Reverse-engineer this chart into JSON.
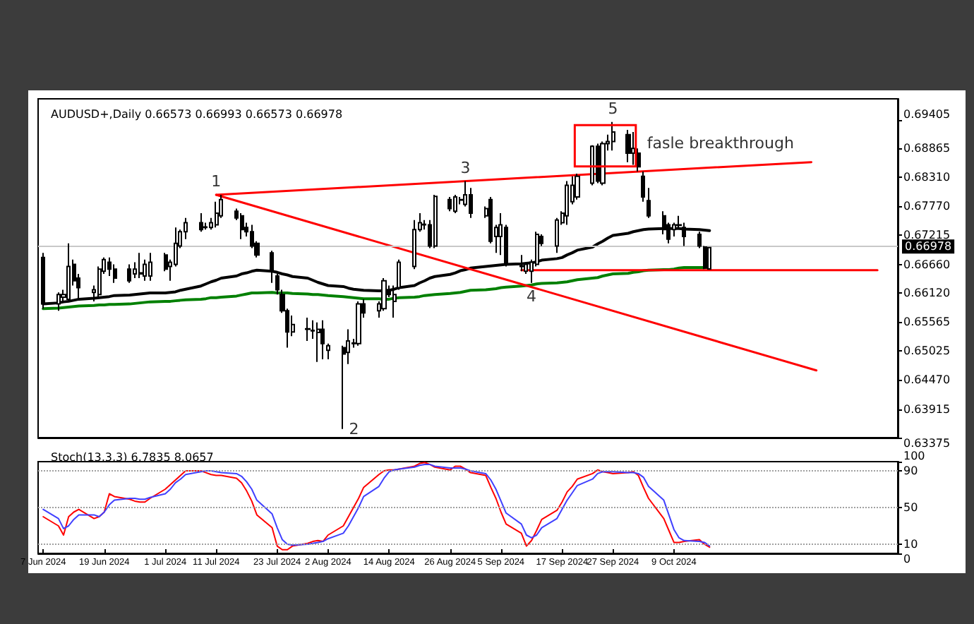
{
  "chart_data": [
    {
      "type": "candlestick",
      "title": "AUDUSD+,Daily 0.66573 0.66993 0.66573 0.66978",
      "x": [
        "2024-06-07",
        "2024-06-10",
        "2024-06-11",
        "2024-06-12",
        "2024-06-13",
        "2024-06-14",
        "2024-06-17",
        "2024-06-18",
        "2024-06-19",
        "2024-06-20",
        "2024-06-21",
        "2024-06-24",
        "2024-06-25",
        "2024-06-26",
        "2024-06-27",
        "2024-06-28",
        "2024-07-01",
        "2024-07-02",
        "2024-07-03",
        "2024-07-04",
        "2024-07-05",
        "2024-07-08",
        "2024-07-09",
        "2024-07-10",
        "2024-07-11",
        "2024-07-12",
        "2024-07-15",
        "2024-07-16",
        "2024-07-17",
        "2024-07-18",
        "2024-07-19",
        "2024-07-22",
        "2024-07-23",
        "2024-07-24",
        "2024-07-25",
        "2024-07-26",
        "2024-07-29",
        "2024-07-30",
        "2024-07-31",
        "2024-08-01",
        "2024-08-02",
        "2024-08-05",
        "2024-08-06",
        "2024-08-07",
        "2024-08-08",
        "2024-08-09",
        "2024-08-12",
        "2024-08-13",
        "2024-08-14",
        "2024-08-15",
        "2024-08-16",
        "2024-08-19",
        "2024-08-20",
        "2024-08-21",
        "2024-08-22",
        "2024-08-23",
        "2024-08-26",
        "2024-08-27",
        "2024-08-28",
        "2024-08-29",
        "2024-08-30",
        "2024-09-02",
        "2024-09-03",
        "2024-09-04",
        "2024-09-05",
        "2024-09-06",
        "2024-09-09",
        "2024-09-10",
        "2024-09-11",
        "2024-09-12",
        "2024-09-13",
        "2024-09-16",
        "2024-09-17",
        "2024-09-18",
        "2024-09-19",
        "2024-09-20",
        "2024-09-23",
        "2024-09-24",
        "2024-09-25",
        "2024-09-26",
        "2024-09-27",
        "2024-09-30",
        "2024-10-01",
        "2024-10-02",
        "2024-10-03",
        "2024-10-04",
        "2024-10-07",
        "2024-10-08",
        "2024-10-09",
        "2024-10-10",
        "2024-10-11",
        "2024-10-14",
        "2024-10-15",
        "2024-10-16"
      ],
      "ohlc": [
        [
          0.6679,
          0.6688,
          0.6582,
          0.6591
        ],
        [
          0.6591,
          0.6613,
          0.6578,
          0.6609
        ],
        [
          0.6604,
          0.6618,
          0.6596,
          0.6609
        ],
        [
          0.66,
          0.6706,
          0.6596,
          0.6662
        ],
        [
          0.6666,
          0.6675,
          0.6626,
          0.6635
        ],
        [
          0.664,
          0.6648,
          0.66,
          0.6622
        ],
        [
          0.6613,
          0.6626,
          0.6596,
          0.6618
        ],
        [
          0.6609,
          0.6662,
          0.6604,
          0.6657
        ],
        [
          0.6653,
          0.6679,
          0.6648,
          0.6675
        ],
        [
          0.667,
          0.6679,
          0.6644,
          0.6657
        ],
        [
          0.6657,
          0.6666,
          0.6631,
          0.664
        ],
        [
          0.6657,
          0.6666,
          0.6631,
          0.6635
        ],
        [
          0.6648,
          0.667,
          0.664,
          0.6657
        ],
        [
          0.6648,
          0.6688,
          0.664,
          0.665
        ],
        [
          0.6644,
          0.6675,
          0.6635,
          0.6666
        ],
        [
          0.6644,
          0.6688,
          0.6635,
          0.667
        ],
        [
          0.6684,
          0.6688,
          0.6653,
          0.6657
        ],
        [
          0.6662,
          0.6675,
          0.6635,
          0.667
        ],
        [
          0.6666,
          0.6736,
          0.6662,
          0.6706
        ],
        [
          0.6701,
          0.6732,
          0.6697,
          0.6728
        ],
        [
          0.6728,
          0.6754,
          0.6714,
          0.6745
        ],
        [
          0.6745,
          0.6763,
          0.6728,
          0.6732
        ],
        [
          0.6736,
          0.6745,
          0.6732,
          0.6737
        ],
        [
          0.6736,
          0.6754,
          0.6732,
          0.6745
        ],
        [
          0.6741,
          0.6785,
          0.6736,
          0.6763
        ],
        [
          0.6758,
          0.6798,
          0.6754,
          0.6789
        ],
        [
          0.6767,
          0.6772,
          0.675,
          0.6754
        ],
        [
          0.6758,
          0.6763,
          0.6714,
          0.6732
        ],
        [
          0.6736,
          0.6745,
          0.6719,
          0.6728
        ],
        [
          0.6728,
          0.6741,
          0.6697,
          0.6701
        ],
        [
          0.6706,
          0.671,
          0.6679,
          0.6684
        ],
        [
          0.6688,
          0.6692,
          0.6631,
          0.6653
        ],
        [
          0.6644,
          0.6648,
          0.6609,
          0.6618
        ],
        [
          0.6609,
          0.6618,
          0.6574,
          0.6578
        ],
        [
          0.6578,
          0.6582,
          0.6508,
          0.6538
        ],
        [
          0.6538,
          0.6569,
          0.653,
          0.6552
        ],
        [
          0.6543,
          0.6565,
          0.6521,
          0.6544
        ],
        [
          0.654,
          0.656,
          0.6525,
          0.6541
        ],
        [
          0.6537,
          0.6556,
          0.6481,
          0.6543
        ],
        [
          0.6543,
          0.656,
          0.6486,
          0.6516
        ],
        [
          0.6503,
          0.6516,
          0.6486,
          0.6512
        ],
        [
          0.6508,
          0.6512,
          0.6354,
          0.6496
        ],
        [
          0.6499,
          0.6543,
          0.6477,
          0.6521
        ],
        [
          0.6516,
          0.6525,
          0.6508,
          0.6517
        ],
        [
          0.6516,
          0.6596,
          0.6512,
          0.6591
        ],
        [
          0.6591,
          0.66,
          0.6565,
          0.6574
        ],
        [
          0.6578,
          0.6596,
          0.6565,
          0.6591
        ],
        [
          0.6582,
          0.664,
          0.6578,
          0.6635
        ],
        [
          0.6618,
          0.6626,
          0.6604,
          0.6609
        ],
        [
          0.6596,
          0.6626,
          0.6565,
          0.6609
        ],
        [
          0.6622,
          0.6675,
          0.6618,
          0.667
        ],
        [
          0.6662,
          0.675,
          0.6657,
          0.6732
        ],
        [
          0.6732,
          0.6763,
          0.6728,
          0.6745
        ],
        [
          0.6741,
          0.675,
          0.6732,
          0.6742
        ],
        [
          0.6741,
          0.675,
          0.6697,
          0.6701
        ],
        [
          0.6701,
          0.6798,
          0.6697,
          0.6795
        ],
        [
          0.6789,
          0.6794,
          0.6767,
          0.6772
        ],
        [
          0.6767,
          0.6798,
          0.6763,
          0.6794
        ],
        [
          0.6789,
          0.6794,
          0.678,
          0.6788
        ],
        [
          0.678,
          0.6824,
          0.6776,
          0.6798
        ],
        [
          0.6798,
          0.6811,
          0.6754,
          0.6763
        ],
        [
          0.6758,
          0.6776,
          0.6754,
          0.6772
        ],
        [
          0.6789,
          0.6794,
          0.6706,
          0.671
        ],
        [
          0.6719,
          0.6741,
          0.6688,
          0.6736
        ],
        [
          0.6719,
          0.6763,
          0.6684,
          0.6741
        ],
        [
          0.6736,
          0.6741,
          0.6662,
          0.6666
        ],
        [
          0.6662,
          0.6684,
          0.6653,
          0.6663
        ],
        [
          0.6653,
          0.667,
          0.6648,
          0.6666
        ],
        [
          0.6653,
          0.6675,
          0.6631,
          0.667
        ],
        [
          0.6666,
          0.6728,
          0.6662,
          0.6723
        ],
        [
          0.6719,
          0.6723,
          0.6701,
          0.6706
        ],
        [
          0.6701,
          0.6754,
          0.6688,
          0.675
        ],
        [
          0.6745,
          0.6767,
          0.6741,
          0.6763
        ],
        [
          0.6758,
          0.6824,
          0.6741,
          0.6816
        ],
        [
          0.6785,
          0.6833,
          0.678,
          0.6816
        ],
        [
          0.6794,
          0.6838,
          0.6789,
          0.6833
        ],
        [
          0.682,
          0.6892,
          0.6816,
          0.689
        ],
        [
          0.689,
          0.6895,
          0.682,
          0.6824
        ],
        [
          0.682,
          0.6899,
          0.6816,
          0.6895
        ],
        [
          0.6895,
          0.6912,
          0.6882,
          0.6899
        ],
        [
          0.6899,
          0.6936,
          0.6882,
          0.6917
        ],
        [
          0.6912,
          0.6921,
          0.686,
          0.6877
        ],
        [
          0.6877,
          0.6917,
          0.6855,
          0.6886
        ],
        [
          0.6877,
          0.6886,
          0.6842,
          0.6851
        ],
        [
          0.6833,
          0.6842,
          0.6785,
          0.6794
        ],
        [
          0.6787,
          0.6811,
          0.6754,
          0.6758
        ],
        [
          0.6758,
          0.6767,
          0.6723,
          0.6732
        ],
        [
          0.6741,
          0.6745,
          0.6706,
          0.6714
        ],
        [
          0.6732,
          0.6745,
          0.6719,
          0.6741
        ],
        [
          0.6741,
          0.6758,
          0.6736,
          0.674
        ],
        [
          0.6736,
          0.6745,
          0.6701,
          0.6719
        ],
        [
          0.6723,
          0.6728,
          0.6697,
          0.6701
        ],
        [
          0.6699,
          0.6701,
          0.6657,
          0.6659
        ],
        [
          0.66573,
          0.66993,
          0.66573,
          0.66978
        ]
      ],
      "series": [
        {
          "type": "line",
          "color": "#000000",
          "values": [
            0.6591,
            0.6593,
            0.6595,
            0.6596,
            0.6598,
            0.66,
            0.6602,
            0.6603,
            0.6604,
            0.6605,
            0.6607,
            0.6608,
            0.6609,
            0.661,
            0.6611,
            0.6612,
            0.6612,
            0.6613,
            0.6614,
            0.6617,
            0.6619,
            0.6625,
            0.6629,
            0.6633,
            0.6636,
            0.664,
            0.6644,
            0.6648,
            0.665,
            0.6653,
            0.6655,
            0.6653,
            0.6651,
            0.6648,
            0.6646,
            0.6643,
            0.664,
            0.6636,
            0.6632,
            0.6629,
            0.6626,
            0.6624,
            0.6621,
            0.6619,
            0.6618,
            0.6617,
            0.6616,
            0.6616,
            0.6617,
            0.6619,
            0.6622,
            0.6626,
            0.6631,
            0.6635,
            0.664,
            0.6643,
            0.6647,
            0.665,
            0.6654,
            0.6656,
            0.6659,
            0.6662,
            0.6663,
            0.6664,
            0.6665,
            0.6666,
            0.6667,
            0.6668,
            0.6669,
            0.6671,
            0.6674,
            0.6677,
            0.6679,
            0.6684,
            0.6688,
            0.6693,
            0.6699,
            0.6705,
            0.671,
            0.6716,
            0.6721,
            0.6725,
            0.6728,
            0.673,
            0.6732,
            0.6733,
            0.6734,
            0.6734,
            0.6734,
            0.6734,
            0.6733,
            0.6732,
            0.6731,
            0.673
          ]
        },
        {
          "type": "line",
          "color": "#008000",
          "values": [
            0.6582,
            0.6583,
            0.6584,
            0.6585,
            0.6586,
            0.6587,
            0.6588,
            0.6589,
            0.6589,
            0.659,
            0.659,
            0.6591,
            0.6592,
            0.6593,
            0.6594,
            0.6595,
            0.6596,
            0.6596,
            0.6597,
            0.6598,
            0.6599,
            0.66,
            0.6601,
            0.6603,
            0.6603,
            0.6604,
            0.6606,
            0.6608,
            0.661,
            0.6612,
            0.6612,
            0.6613,
            0.6612,
            0.6612,
            0.6612,
            0.6611,
            0.661,
            0.6609,
            0.6609,
            0.6608,
            0.6607,
            0.6605,
            0.6604,
            0.6603,
            0.6602,
            0.6601,
            0.6601,
            0.66,
            0.66,
            0.6602,
            0.6603,
            0.6604,
            0.6605,
            0.6607,
            0.6608,
            0.6609,
            0.6611,
            0.6612,
            0.6613,
            0.6615,
            0.6617,
            0.6618,
            0.6619,
            0.662,
            0.6622,
            0.6623,
            0.6625,
            0.6626,
            0.6627,
            0.6629,
            0.663,
            0.6631,
            0.6632,
            0.6633,
            0.6635,
            0.6637,
            0.664,
            0.6641,
            0.6644,
            0.6646,
            0.6648,
            0.6649,
            0.6651,
            0.6652,
            0.6654,
            0.6655,
            0.6656,
            0.6656,
            0.6657,
            0.6659,
            0.666,
            0.666,
            0.666,
            0.6661
          ]
        },
        {
          "type": "line",
          "color": "#ff0000",
          "x": [
            "2024-07-11",
            "2024-11-05"
          ],
          "values": [
            0.6798,
            0.686
          ]
        },
        {
          "type": "line",
          "color": "#ff0000",
          "x": [
            "2024-07-11",
            "2024-11-06"
          ],
          "values": [
            0.6798,
            0.6465
          ]
        },
        {
          "type": "line",
          "color": "#ff0000",
          "x": [
            "2024-09-09",
            "2024-11-18"
          ],
          "values": [
            0.6655,
            0.6655
          ]
        }
      ],
      "xlim": [
        "2024-06-06",
        "2024-11-22"
      ],
      "ylim": [
        0.63375,
        0.698
      ],
      "yticks": [
        0.63375,
        0.63915,
        {
          "value": 0.6447,
          "label": "0.64470"
        },
        0.65025,
        0.65565,
        {
          "value": 0.6612,
          "label": "0.66120"
        },
        {
          "value": 0.6666,
          "label": "0.66660"
        },
        0.67215,
        {
          "value": 0.6777,
          "label": "0.67770"
        },
        {
          "value": 0.6831,
          "label": "0.68310"
        },
        0.68865,
        0.69405
      ],
      "tick_labels": "y",
      "marker": "none",
      "ref_lines": [
        {
          "axis": "y",
          "value": 0.66978,
          "label": "0.66978",
          "color": "#c8c8c8"
        }
      ],
      "annotations": [
        {
          "text": "1",
          "x": "2024-07-11",
          "y": 0.6798
        },
        {
          "text": "2",
          "x": "2024-08-05",
          "y": 0.6354
        },
        {
          "text": "3",
          "x": "2024-08-29",
          "y": 0.6824
        },
        {
          "text": "4",
          "x": "2024-09-11",
          "y": 0.6631
        },
        {
          "text": "5",
          "x": "2024-09-27",
          "y": 0.6936
        },
        "fasle breakthrough"
      ]
    },
    {
      "type": "line",
      "title": "Stoch(13,3,3) 6.7835 8.0657",
      "x": [
        "2024-06-07",
        "2024-06-10",
        "2024-06-11",
        "2024-06-12",
        "2024-06-13",
        "2024-06-14",
        "2024-06-17",
        "2024-06-18",
        "2024-06-19",
        "2024-06-20",
        "2024-06-21",
        "2024-06-24",
        "2024-06-25",
        "2024-06-26",
        "2024-06-27",
        "2024-06-28",
        "2024-07-01",
        "2024-07-02",
        "2024-07-03",
        "2024-07-04",
        "2024-07-05",
        "2024-07-08",
        "2024-07-09",
        "2024-07-10",
        "2024-07-11",
        "2024-07-12",
        "2024-07-15",
        "2024-07-16",
        "2024-07-17",
        "2024-07-18",
        "2024-07-19",
        "2024-07-22",
        "2024-07-23",
        "2024-07-24",
        "2024-07-25",
        "2024-07-26",
        "2024-07-29",
        "2024-07-30",
        "2024-07-31",
        "2024-08-01",
        "2024-08-02",
        "2024-08-05",
        "2024-08-06",
        "2024-08-07",
        "2024-08-08",
        "2024-08-09",
        "2024-08-12",
        "2024-08-13",
        "2024-08-14",
        "2024-08-15",
        "2024-08-16",
        "2024-08-19",
        "2024-08-20",
        "2024-08-21",
        "2024-08-22",
        "2024-08-23",
        "2024-08-26",
        "2024-08-27",
        "2024-08-28",
        "2024-08-29",
        "2024-08-30",
        "2024-09-02",
        "2024-09-03",
        "2024-09-04",
        "2024-09-05",
        "2024-09-06",
        "2024-09-09",
        "2024-09-10",
        "2024-09-11",
        "2024-09-12",
        "2024-09-13",
        "2024-09-16",
        "2024-09-17",
        "2024-09-18",
        "2024-09-19",
        "2024-09-20",
        "2024-09-23",
        "2024-09-24",
        "2024-09-25",
        "2024-09-26",
        "2024-09-27",
        "2024-09-30",
        "2024-10-01",
        "2024-10-02",
        "2024-10-03",
        "2024-10-04",
        "2024-10-07",
        "2024-10-08",
        "2024-10-09",
        "2024-10-10",
        "2024-10-11",
        "2024-10-14",
        "2024-10-15",
        "2024-10-16"
      ],
      "series": [
        {
          "color": "#ff0000",
          "values": [
            40,
            30,
            20,
            40,
            45,
            48,
            38,
            40,
            45,
            65,
            62,
            59,
            57,
            56,
            56,
            60,
            70,
            75,
            80,
            85,
            90,
            90,
            88,
            86,
            85,
            85,
            82,
            77,
            68,
            57,
            42,
            28,
            8,
            4,
            4,
            8,
            11,
            13,
            14,
            13,
            20,
            30,
            40,
            50,
            60,
            72,
            86,
            90,
            91,
            91,
            92,
            95,
            98,
            99,
            97,
            94,
            91,
            95,
            95,
            92,
            88,
            85,
            72,
            60,
            45,
            32,
            22,
            8,
            14,
            25,
            37,
            47,
            56,
            67,
            73,
            81,
            87,
            91,
            89,
            88,
            87,
            88,
            89,
            85,
            72,
            60,
            38,
            25,
            12,
            12,
            13,
            15,
            10,
            6.7835
          ]
        },
        {
          "color": "#4040ff",
          "values": [
            48,
            38,
            27,
            30,
            37,
            42,
            42,
            40,
            45,
            53,
            58,
            60,
            60,
            59,
            59,
            61,
            65,
            70,
            77,
            81,
            86,
            89,
            90,
            90,
            89,
            88,
            87,
            84,
            78,
            70,
            58,
            43,
            28,
            15,
            10,
            9,
            10,
            11,
            12,
            13,
            16,
            22,
            30,
            40,
            50,
            62,
            73,
            82,
            89,
            91,
            92,
            94,
            96,
            97,
            97,
            95,
            93,
            93,
            93,
            92,
            90,
            87,
            80,
            70,
            57,
            44,
            32,
            20,
            17,
            20,
            28,
            38,
            48,
            58,
            66,
            74,
            81,
            87,
            89,
            89,
            89,
            88,
            88,
            87,
            83,
            73,
            58,
            42,
            26,
            17,
            14,
            13,
            12,
            8.0657
          ]
        }
      ],
      "xlim": [
        "2024-06-06",
        "2024-11-22"
      ],
      "xticks": [
        {
          "value": "2024-06-07",
          "label": "7 Jun 2024"
        },
        {
          "value": "2024-06-19",
          "label": "19 Jun 2024"
        },
        {
          "value": "2024-07-01",
          "label": "1 Jul 2024"
        },
        {
          "value": "2024-07-11",
          "label": "11 Jul 2024"
        },
        {
          "value": "2024-07-23",
          "label": "23 Jul 2024"
        },
        {
          "value": "2024-08-02",
          "label": "2 Aug 2024"
        },
        {
          "value": "2024-08-14",
          "label": "14 Aug 2024"
        },
        {
          "value": "2024-08-26",
          "label": "26 Aug 2024"
        },
        {
          "value": "2024-09-05",
          "label": "5 Sep 2024"
        },
        {
          "value": "2024-09-17",
          "label": "17 Sep 2024"
        },
        {
          "value": "2024-09-27",
          "label": "27 Sep 2024"
        },
        {
          "value": "2024-10-09",
          "label": "9 Oct 2024"
        }
      ],
      "ylim": [
        0,
        100
      ],
      "yticks": [
        0,
        10,
        50,
        90,
        100
      ],
      "marker": "none",
      "ref_lines": [
        {
          "axis": "y",
          "value": 10,
          "color": "#a0a0a0",
          "line_style": "dotted"
        },
        {
          "axis": "y",
          "value": 50,
          "color": "#a0a0a0",
          "line_style": "dotted"
        },
        {
          "axis": "y",
          "value": 90,
          "color": "#a0a0a0",
          "line_style": "dotted"
        }
      ]
    }
  ]
}
